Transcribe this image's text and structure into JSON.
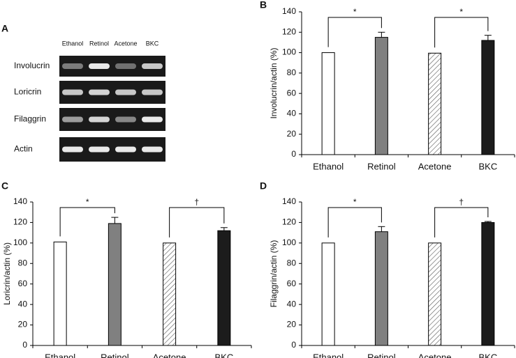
{
  "gel": {
    "label": "A",
    "lanes": [
      "Ethanol",
      "Retinol",
      "Acetone",
      "BKC"
    ],
    "genes": [
      "Involucrin",
      "Loricrin",
      "Filaggrin",
      "Actin"
    ]
  },
  "chart_data": [
    {
      "type": "bar",
      "label": "B",
      "y_label": "Involucrin/actin (%)",
      "categories": [
        "Ethanol",
        "Retinol",
        "Acetone",
        "BKC"
      ],
      "values": [
        100,
        115,
        99.5,
        112
      ],
      "errors": [
        null,
        5,
        null,
        5
      ],
      "fills": [
        "#ffffff",
        "#808080",
        "hatched",
        "#1c1c1c"
      ],
      "ylim": [
        0,
        140
      ],
      "yticks": [
        0,
        20,
        40,
        60,
        80,
        100,
        120,
        140
      ],
      "annotations": [
        {
          "text": "*",
          "from": "Ethanol",
          "to": "Retinol"
        },
        {
          "text": "*",
          "from": "Acetone",
          "to": "BKC"
        }
      ]
    },
    {
      "type": "bar",
      "label": "C",
      "y_label": "Loricrin/actin (%)",
      "categories": [
        "Ethanol",
        "Retinol",
        "Acetone",
        "BKC"
      ],
      "values": [
        101,
        119,
        100,
        112
      ],
      "errors": [
        null,
        6,
        null,
        3
      ],
      "fills": [
        "#ffffff",
        "#808080",
        "hatched",
        "#1c1c1c"
      ],
      "ylim": [
        0,
        140
      ],
      "yticks": [
        0,
        20,
        40,
        60,
        80,
        100,
        120,
        140
      ],
      "annotations": [
        {
          "text": "*",
          "from": "Ethanol",
          "to": "Retinol"
        },
        {
          "text": "†",
          "from": "Acetone",
          "to": "BKC"
        }
      ]
    },
    {
      "type": "bar",
      "label": "D",
      "y_label": "Filaggrin/actin (%)",
      "categories": [
        "Ethanol",
        "Retinol",
        "Acetone",
        "BKC"
      ],
      "values": [
        100,
        111,
        100,
        120
      ],
      "errors": [
        null,
        5,
        null,
        1
      ],
      "fills": [
        "#ffffff",
        "#808080",
        "hatched",
        "#1c1c1c"
      ],
      "ylim": [
        0,
        140
      ],
      "yticks": [
        0,
        20,
        40,
        60,
        80,
        100,
        120,
        140
      ],
      "annotations": [
        {
          "text": "*",
          "from": "Ethanol",
          "to": "Retinol"
        },
        {
          "text": "†",
          "from": "Acetone",
          "to": "BKC"
        }
      ]
    }
  ]
}
